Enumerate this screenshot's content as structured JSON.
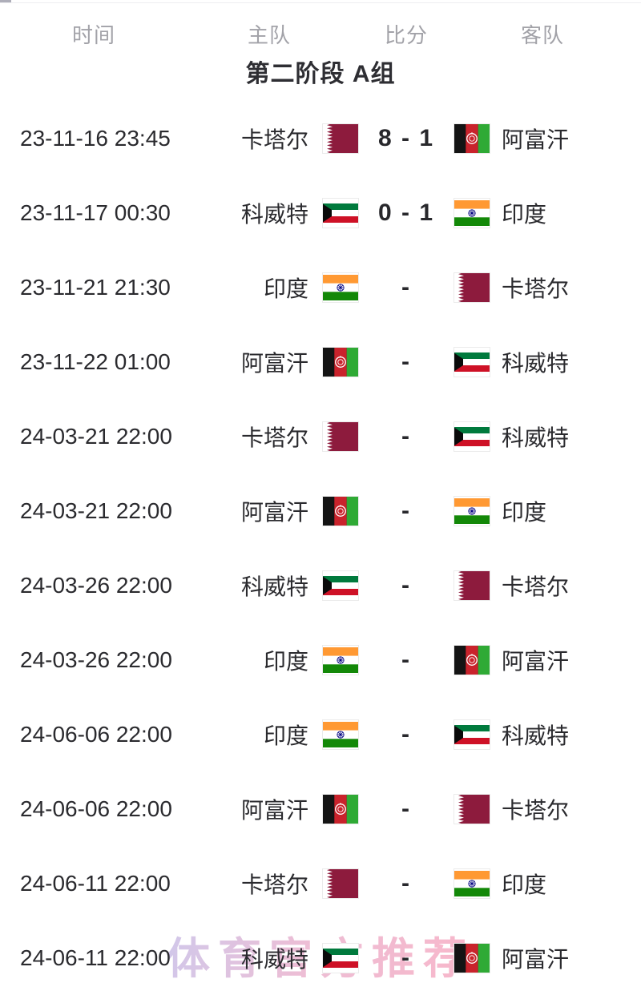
{
  "header": {
    "time": "时间",
    "home": "主队",
    "score": "比分",
    "away": "客队"
  },
  "group_title": "第二阶段 A组",
  "watermark": "体育官方推荐",
  "colors": {
    "header_text": "#a2a2a8",
    "title_text": "#2e2e33",
    "row_text": "#2a2a2e",
    "score_text": "#28282c",
    "watermark_from": "#c6bbe6",
    "watermark_to": "#f7a6be",
    "qatar_maroon": "#8d1b3d",
    "afghanistan_red": "#c9232c",
    "afghanistan_green": "#2faa35",
    "kuwait_green": "#007a3d",
    "kuwait_red": "#ce1126",
    "india_saffron": "#ff9933",
    "india_green": "#138808",
    "india_navy": "#000080"
  },
  "matches": [
    {
      "time": "23-11-16 23:45",
      "home": "卡塔尔",
      "home_flag": "qatar",
      "score": "8 - 1",
      "away_flag": "afghanistan",
      "away": "阿富汗"
    },
    {
      "time": "23-11-17 00:30",
      "home": "科威特",
      "home_flag": "kuwait",
      "score": "0 - 1",
      "away_flag": "india",
      "away": "印度"
    },
    {
      "time": "23-11-21 21:30",
      "home": "印度",
      "home_flag": "india",
      "score": "-",
      "away_flag": "qatar",
      "away": "卡塔尔"
    },
    {
      "time": "23-11-22 01:00",
      "home": "阿富汗",
      "home_flag": "afghanistan",
      "score": "-",
      "away_flag": "kuwait",
      "away": "科威特"
    },
    {
      "time": "24-03-21 22:00",
      "home": "卡塔尔",
      "home_flag": "qatar",
      "score": "-",
      "away_flag": "kuwait",
      "away": "科威特"
    },
    {
      "time": "24-03-21 22:00",
      "home": "阿富汗",
      "home_flag": "afghanistan",
      "score": "-",
      "away_flag": "india",
      "away": "印度"
    },
    {
      "time": "24-03-26 22:00",
      "home": "科威特",
      "home_flag": "kuwait",
      "score": "-",
      "away_flag": "qatar",
      "away": "卡塔尔"
    },
    {
      "time": "24-03-26 22:00",
      "home": "印度",
      "home_flag": "india",
      "score": "-",
      "away_flag": "afghanistan",
      "away": "阿富汗"
    },
    {
      "time": "24-06-06 22:00",
      "home": "印度",
      "home_flag": "india",
      "score": "-",
      "away_flag": "kuwait",
      "away": "科威特"
    },
    {
      "time": "24-06-06 22:00",
      "home": "阿富汗",
      "home_flag": "afghanistan",
      "score": "-",
      "away_flag": "qatar",
      "away": "卡塔尔"
    },
    {
      "time": "24-06-11 22:00",
      "home": "卡塔尔",
      "home_flag": "qatar",
      "score": "-",
      "away_flag": "india",
      "away": "印度"
    },
    {
      "time": "24-06-11 22:00",
      "home": "科威特",
      "home_flag": "kuwait",
      "score": "-",
      "away_flag": "afghanistan",
      "away": "阿富汗"
    }
  ]
}
